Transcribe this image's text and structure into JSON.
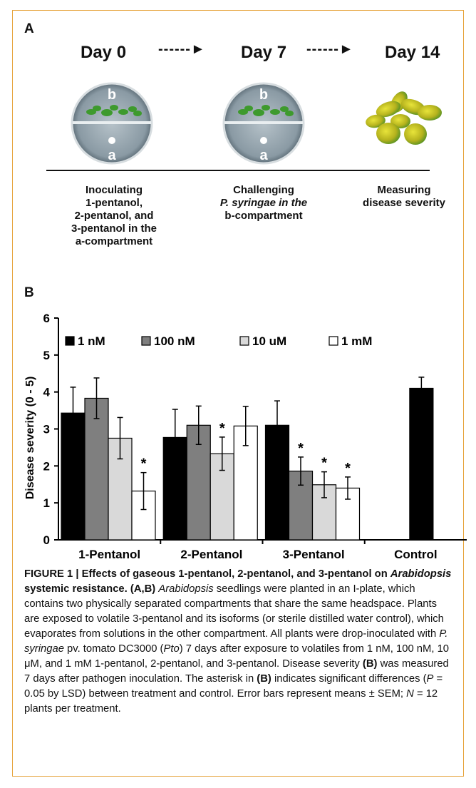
{
  "panel_a": {
    "label": "A",
    "days": [
      "Day 0",
      "Day 7",
      "Day 14"
    ],
    "plate_labels": {
      "top": "b",
      "bottom": "a"
    },
    "steps": [
      {
        "lines": [
          "Inoculating",
          "1-pentanol,",
          "2-pentanol, and",
          "3-pentanol in the",
          "a-compartment"
        ]
      },
      {
        "lines": [
          "Challenging",
          "P. syringae in the",
          "b-compartment"
        ]
      },
      {
        "lines": [
          "Measuring",
          "disease severity"
        ]
      }
    ]
  },
  "panel_b": {
    "label": "B"
  },
  "chart_data": {
    "type": "bar",
    "ylabel": "Disease severity (0 - 5)",
    "ylim": [
      0,
      6
    ],
    "yticks": [
      0,
      1,
      2,
      3,
      4,
      5,
      6
    ],
    "categories": [
      "1-Pentanol",
      "2-Pentanol",
      "3-Pentanol",
      "Control"
    ],
    "legend_position": "top-left",
    "grid": false,
    "series": [
      {
        "name": "1 nM",
        "color": "#000000",
        "values": [
          3.43,
          2.77,
          3.1,
          4.1
        ],
        "errors": [
          0.7,
          0.76,
          0.66,
          0.3
        ],
        "significant": [
          false,
          false,
          false,
          false
        ]
      },
      {
        "name": "100 nM",
        "color": "#7f7f7f",
        "values": [
          3.83,
          3.1,
          1.86,
          null
        ],
        "errors": [
          0.55,
          0.52,
          0.38,
          null
        ],
        "significant": [
          false,
          false,
          true,
          false
        ]
      },
      {
        "name": "10 uM",
        "color": "#d9d9d9",
        "values": [
          2.75,
          2.33,
          1.49,
          null
        ],
        "errors": [
          0.56,
          0.45,
          0.35,
          null
        ],
        "significant": [
          false,
          true,
          true,
          false
        ]
      },
      {
        "name": "1 mM",
        "color": "#ffffff",
        "values": [
          1.32,
          3.08,
          1.4,
          null
        ],
        "errors": [
          0.5,
          0.53,
          0.3,
          null
        ],
        "significant": [
          true,
          false,
          true,
          false
        ]
      }
    ],
    "significance_marker": "*"
  },
  "caption": {
    "prefix": "FIGURE 1 | ",
    "title": "Effects of gaseous 1-pentanol, 2-pentanol, and 3-pentanol on ",
    "title_italic": "Arabidopsis",
    "title_end": " systemic resistance. ",
    "panels": "(A,B) ",
    "s1_italic": "Arabidopsis",
    "s1": " seedlings were planted in an I-plate, which contains two physically separated compartments that share the same headspace. Plants are exposed to volatile 3-pentanol and its isoforms (or sterile distilled water control), which evaporates from solutions in the other compartment. All plants were drop-inoculated with ",
    "s2_italic": "P. syringae",
    "s2": " pv. tomato DC3000 (",
    "s3_italic": "Pto",
    "s3": ") 7 days after exposure to volatiles from 1 nM, 100 nM, 10 μM, and 1 mM 1-pentanol, 2-pentanol, and 3-pentanol. Disease severity ",
    "ref_b1": "(B)",
    "s4": " was measured 7 days after pathogen inoculation. The asterisk in ",
    "ref_b2": "(B)",
    "s5": " indicates significant differences (",
    "p_italic": "P",
    "s6": " = 0.05 by LSD) between treatment and control. Error bars represent means ± SEM; ",
    "n_italic": "N",
    "s7": " = 12 plants per treatment."
  }
}
